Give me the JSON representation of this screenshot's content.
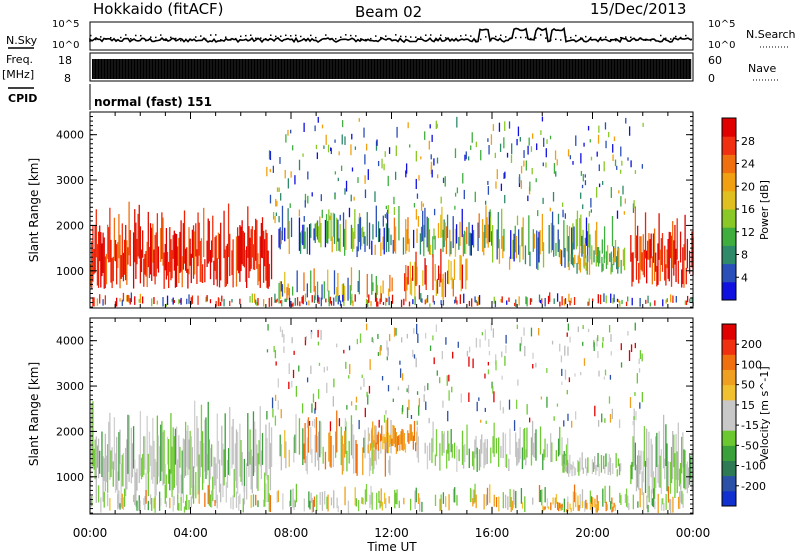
{
  "header": {
    "station": "Hokkaido (fitACF)",
    "beam": "Beam 02",
    "date": "15/Dec/2013"
  },
  "labels": {
    "nsky": "N.Sky",
    "nsearch": "N.Search",
    "freq": "Freq.",
    "mhz": "[MHz]",
    "nave": "Nave",
    "cpid": "CPID",
    "cpid_value": "normal (fast) 151",
    "nsky_top": "10^5",
    "nsky_bottom": "10^0",
    "nsearch_top": "10^5",
    "nsearch_bottom": "10^0",
    "freq_top": "18",
    "freq_bottom": "8",
    "nave_top": "60",
    "nave_bottom": "0"
  },
  "chart_data": [
    {
      "type": "heatmap",
      "panel": "power",
      "ylabel": "Slant Range [km]",
      "yticks": [
        1000,
        2000,
        3000,
        4000
      ],
      "ylim": [
        180,
        4500
      ],
      "colorbar": {
        "label": "Power [dB]",
        "ticks": [
          "4",
          "8",
          "12",
          "16",
          "20",
          "24",
          "28"
        ],
        "colors": [
          "#1010e0",
          "#2a4fb8",
          "#2f8a6a",
          "#3fae3f",
          "#8ac828",
          "#e0c020",
          "#f0a010",
          "#f07010",
          "#f03010",
          "#e00000"
        ]
      }
    },
    {
      "type": "heatmap",
      "panel": "velocity",
      "ylabel": "Slant Range [km]",
      "yticks": [
        1000,
        2000,
        3000,
        4000
      ],
      "ylim": [
        180,
        4500
      ],
      "colorbar": {
        "label": "Velocity [m s^-1]",
        "ticks": [
          "200",
          "100",
          "50",
          "15",
          "-15",
          "-50",
          "-100",
          "-200"
        ],
        "colors": [
          "#1030d0",
          "#2a50a8",
          "#2e7a55",
          "#3aa03a",
          "#6cc830",
          "#c8c8c8",
          "#c8c8c8",
          "#f0c030",
          "#f0a020",
          "#f07010",
          "#f03010",
          "#e00000"
        ]
      }
    }
  ],
  "time_axis": {
    "label": "Time UT",
    "ticks": [
      "00:00",
      "04:00",
      "08:00",
      "12:00",
      "16:00",
      "20:00",
      "00:00"
    ]
  }
}
